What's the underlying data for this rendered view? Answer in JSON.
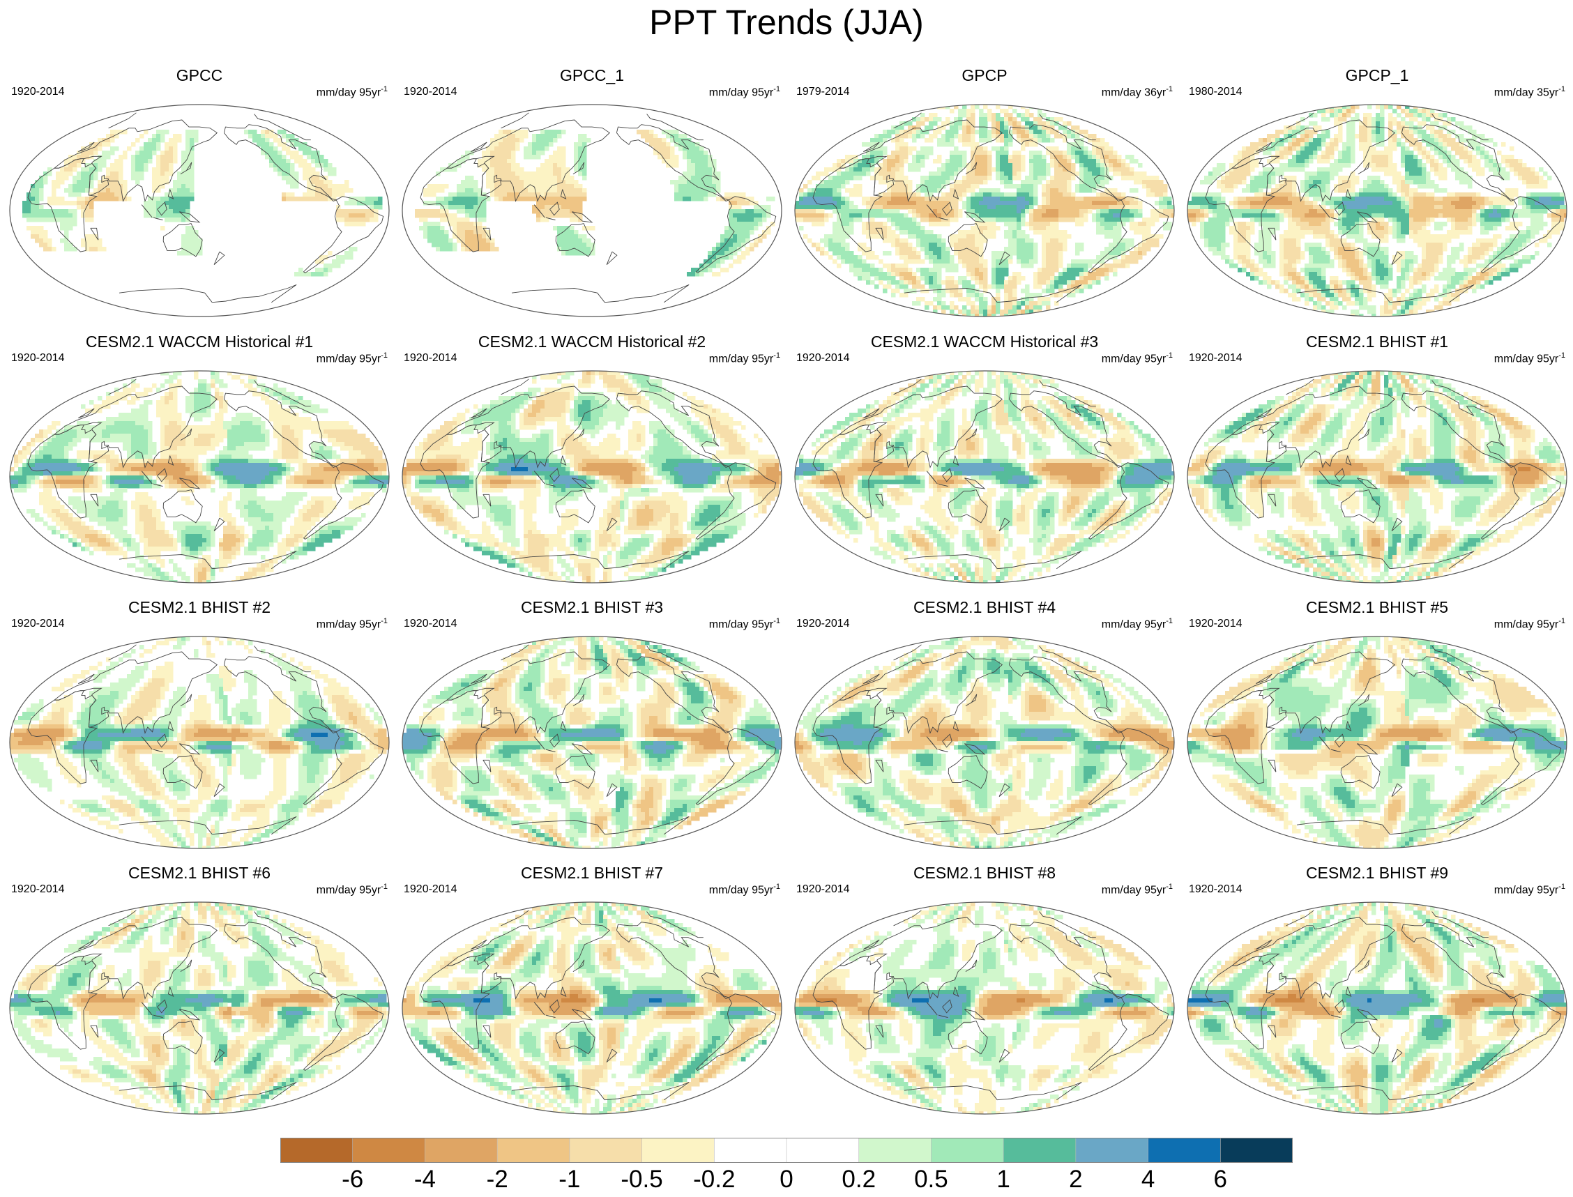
{
  "chart_data": {
    "type": "heatmap",
    "title": "PPT Trends (JJA)",
    "variable": "Precipitation trend",
    "panels": [
      {
        "title": "GPCC",
        "period": "1920-2014",
        "units": "mm/day 95yr",
        "units_exp": "-1"
      },
      {
        "title": "GPCC_1",
        "period": "1920-2014",
        "units": "mm/day 95yr",
        "units_exp": "-1"
      },
      {
        "title": "GPCP",
        "period": "1979-2014",
        "units": "mm/day 36yr",
        "units_exp": "-1"
      },
      {
        "title": "GPCP_1",
        "period": "1980-2014",
        "units": "mm/day 35yr",
        "units_exp": "-1"
      },
      {
        "title": "CESM2.1 WACCM Historical #1",
        "period": "1920-2014",
        "units": "mm/day 95yr",
        "units_exp": "-1"
      },
      {
        "title": "CESM2.1 WACCM Historical #2",
        "period": "1920-2014",
        "units": "mm/day 95yr",
        "units_exp": "-1"
      },
      {
        "title": "CESM2.1 WACCM Historical #3",
        "period": "1920-2014",
        "units": "mm/day 95yr",
        "units_exp": "-1"
      },
      {
        "title": "CESM2.1 BHIST #1",
        "period": "1920-2014",
        "units": "mm/day 95yr",
        "units_exp": "-1"
      },
      {
        "title": "CESM2.1 BHIST #2",
        "period": "1920-2014",
        "units": "mm/day 95yr",
        "units_exp": "-1"
      },
      {
        "title": "CESM2.1 BHIST #3",
        "period": "1920-2014",
        "units": "mm/day 95yr",
        "units_exp": "-1"
      },
      {
        "title": "CESM2.1 BHIST #4",
        "period": "1920-2014",
        "units": "mm/day 95yr",
        "units_exp": "-1"
      },
      {
        "title": "CESM2.1 BHIST #5",
        "period": "1920-2014",
        "units": "mm/day 95yr",
        "units_exp": "-1"
      },
      {
        "title": "CESM2.1 BHIST #6",
        "period": "1920-2014",
        "units": "mm/day 95yr",
        "units_exp": "-1"
      },
      {
        "title": "CESM2.1 BHIST #7",
        "period": "1920-2014",
        "units": "mm/day 95yr",
        "units_exp": "-1"
      },
      {
        "title": "CESM2.1 BHIST #8",
        "period": "1920-2014",
        "units": "mm/day 95yr",
        "units_exp": "-1"
      },
      {
        "title": "CESM2.1 BHIST #9",
        "period": "1920-2014",
        "units": "mm/day 95yr",
        "units_exp": "-1"
      }
    ],
    "colorbar": {
      "levels": [
        "-6",
        "-4",
        "-2",
        "-1",
        "-0.5",
        "-0.2",
        "0",
        "0.2",
        "0.5",
        "1",
        "2",
        "4",
        "6"
      ],
      "colors": [
        "#b5692a",
        "#cf8843",
        "#dfa564",
        "#efc585",
        "#f6deaa",
        "#fcf3c4",
        "#ffffff",
        "#ffffff",
        "#d1f7cc",
        "#a1e9b8",
        "#56bc9b",
        "#6aa7c6",
        "#0e6fb1",
        "#083c5a"
      ]
    }
  }
}
